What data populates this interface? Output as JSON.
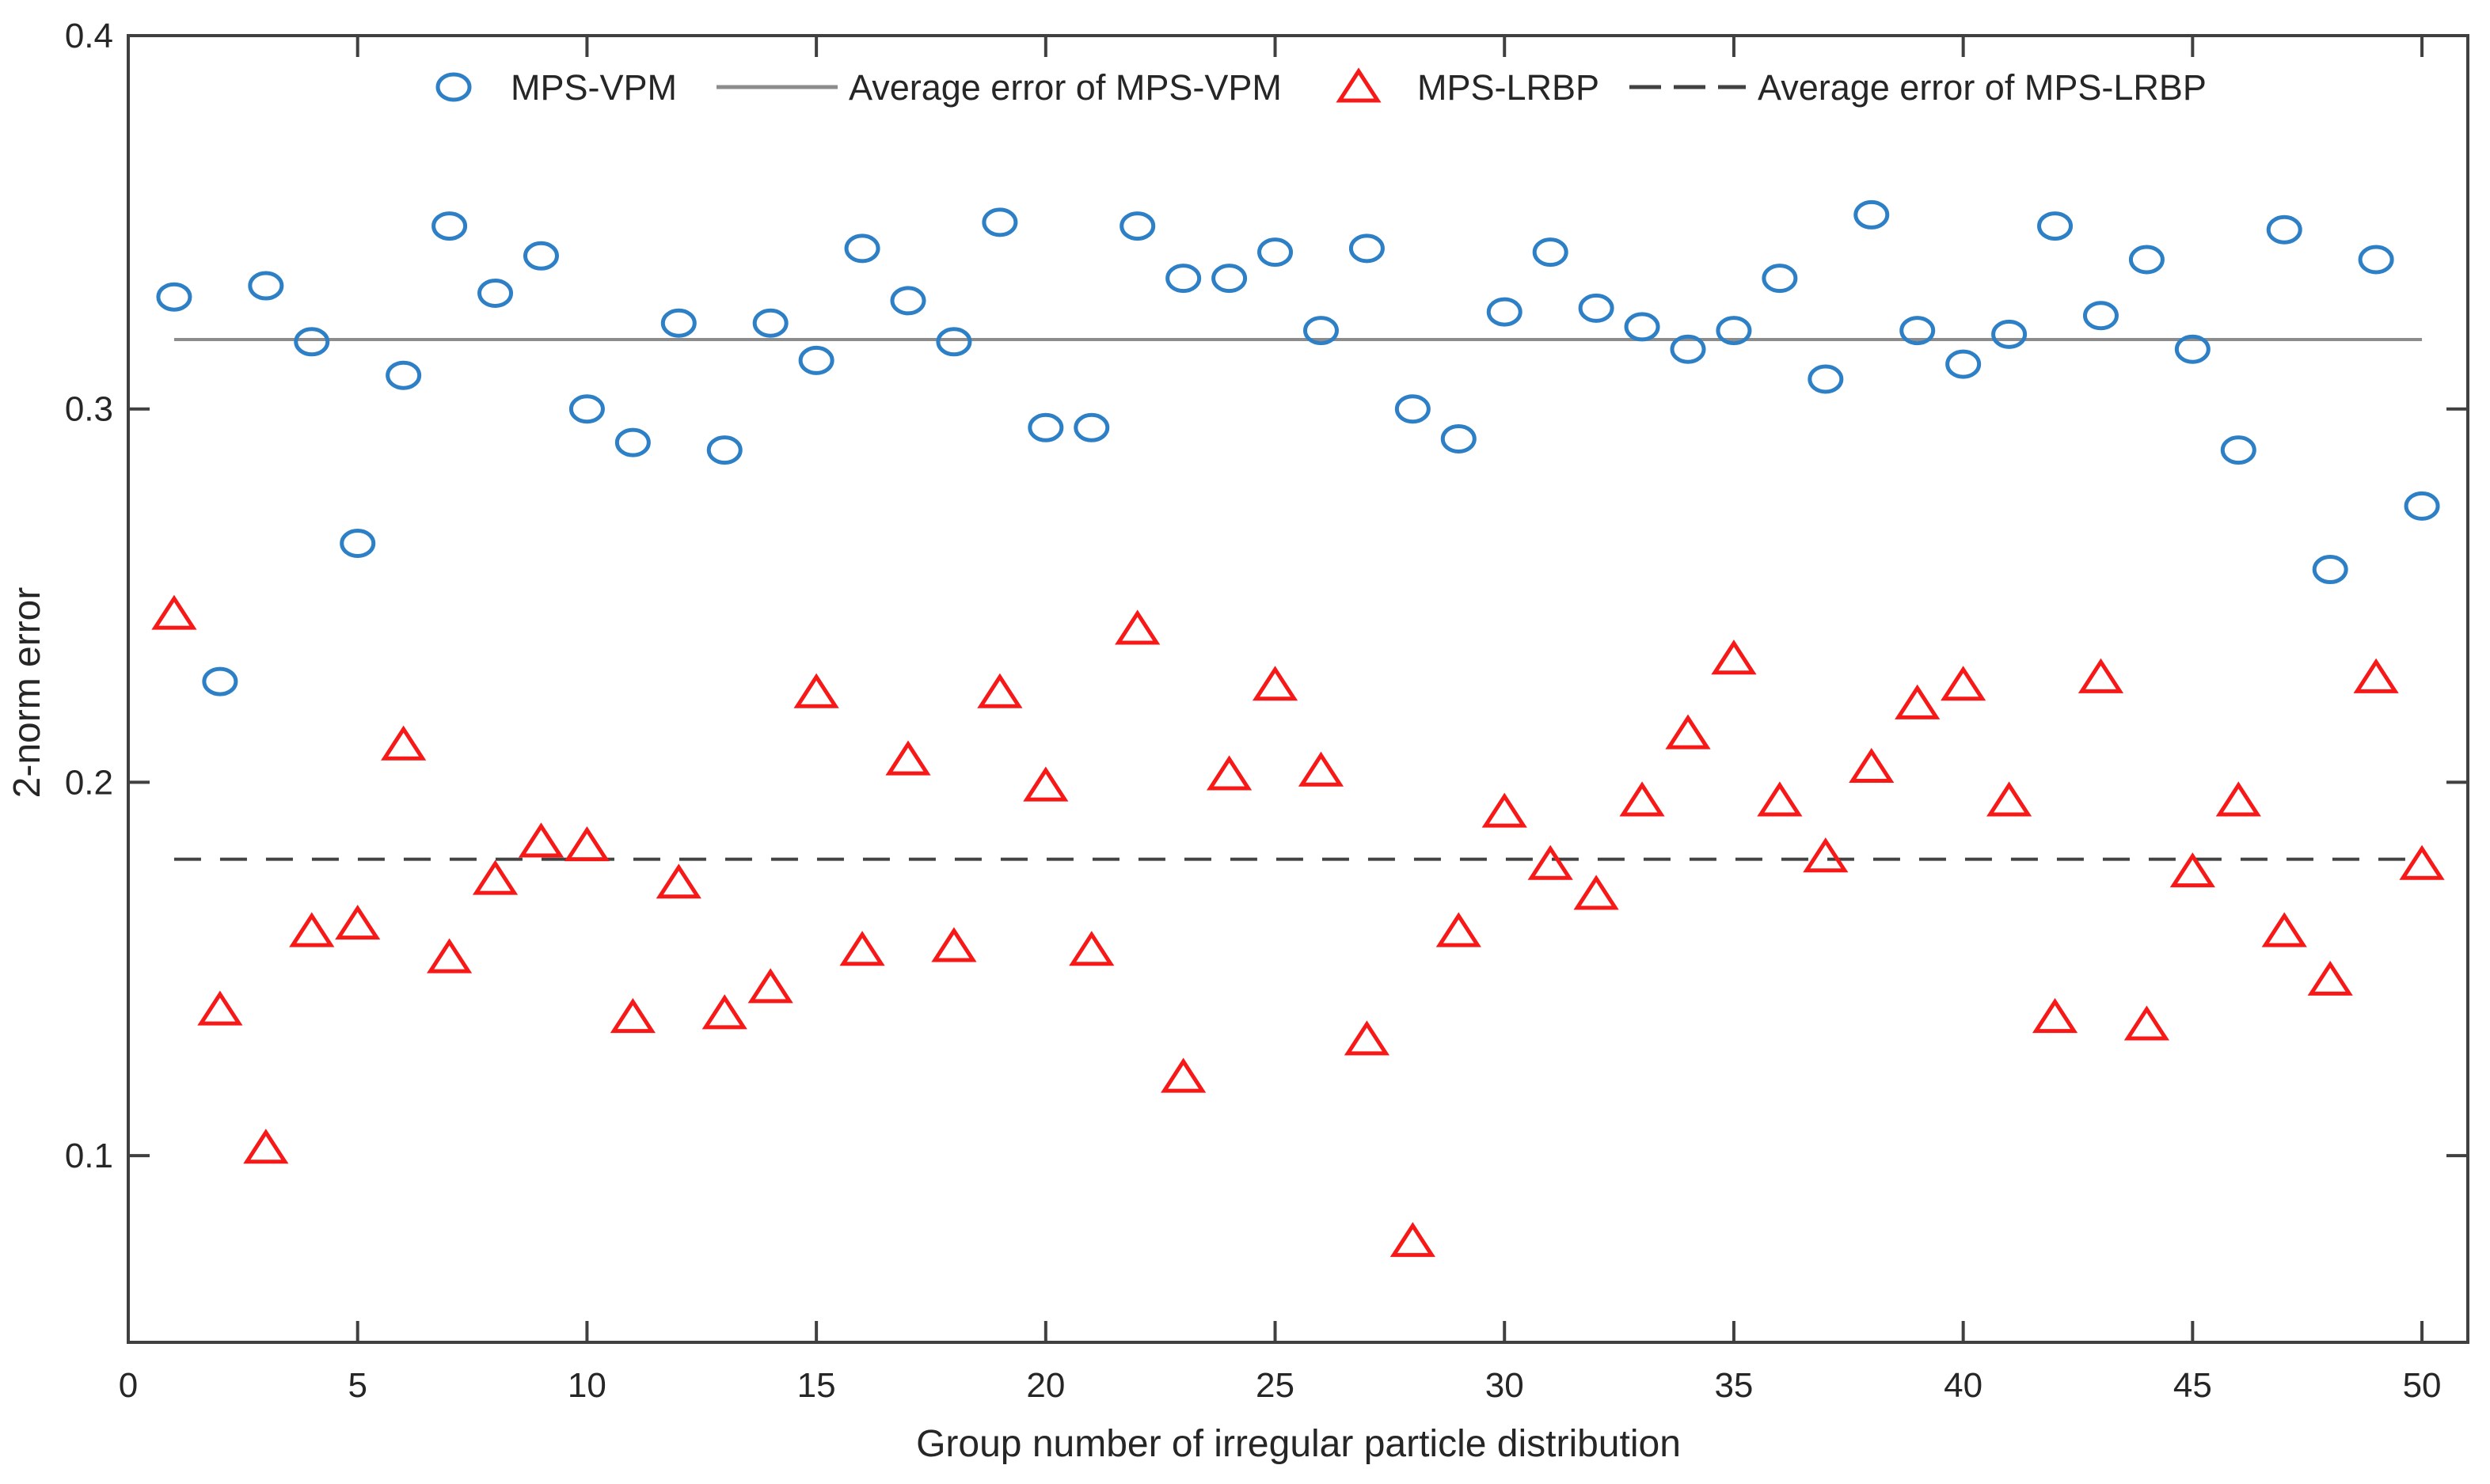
{
  "figure": {
    "background": "#ffffff"
  },
  "chart_data": {
    "type": "scatter",
    "title": "",
    "xlabel": "Group number of irregular particle distribution",
    "ylabel": "2-norm error",
    "xlim": [
      0,
      51
    ],
    "ylim": [
      0.05,
      0.4
    ],
    "grid": false,
    "legend_position": "north-inside",
    "axis_color": "#404040",
    "text_color": "#262626",
    "xticks": [
      "0",
      "5",
      "10",
      "15",
      "20",
      "25",
      "30",
      "35",
      "40",
      "45",
      "50"
    ],
    "yticks": [
      "0.1",
      "0.2",
      "0.3",
      "0.4"
    ],
    "x": [
      1,
      2,
      3,
      4,
      5,
      6,
      7,
      8,
      9,
      10,
      11,
      12,
      13,
      14,
      15,
      16,
      17,
      18,
      19,
      20,
      21,
      22,
      23,
      24,
      25,
      26,
      27,
      28,
      29,
      30,
      31,
      32,
      33,
      34,
      35,
      36,
      37,
      38,
      39,
      40,
      41,
      42,
      43,
      44,
      45,
      46,
      47,
      48,
      49,
      50
    ],
    "series": [
      {
        "name": "MPS-VPM",
        "marker": "circle",
        "color": "#2e80c6",
        "values": [
          0.33,
          0.227,
          0.333,
          0.318,
          0.264,
          0.309,
          0.349,
          0.331,
          0.341,
          0.3,
          0.291,
          0.323,
          0.289,
          0.323,
          0.313,
          0.343,
          0.329,
          0.318,
          0.35,
          0.295,
          0.295,
          0.349,
          0.335,
          0.335,
          0.342,
          0.321,
          0.343,
          0.3,
          0.292,
          0.326,
          0.342,
          0.327,
          0.322,
          0.316,
          0.321,
          0.335,
          0.308,
          0.352,
          0.321,
          0.312,
          0.32,
          0.349,
          0.325,
          0.34,
          0.316,
          0.289,
          0.348,
          0.257,
          0.34,
          0.274
        ]
      },
      {
        "name": "MPS-LRBP",
        "marker": "triangle",
        "color": "#f71818",
        "values": [
          0.245,
          0.139,
          0.102,
          0.16,
          0.162,
          0.21,
          0.153,
          0.174,
          0.184,
          0.183,
          0.137,
          0.173,
          0.138,
          0.145,
          0.224,
          0.155,
          0.206,
          0.156,
          0.224,
          0.199,
          0.155,
          0.241,
          0.121,
          0.202,
          0.226,
          0.203,
          0.131,
          0.077,
          0.16,
          0.192,
          0.178,
          0.17,
          0.195,
          0.213,
          0.233,
          0.195,
          0.18,
          0.204,
          0.221,
          0.226,
          0.195,
          0.137,
          0.228,
          0.135,
          0.176,
          0.195,
          0.16,
          0.147,
          0.228,
          0.178
        ]
      }
    ],
    "average_lines": [
      {
        "name": "Average error of  MPS-VPM",
        "style": "solid",
        "color": "#8c8c8c",
        "value": 0.3186
      },
      {
        "name": "Average error of MPS-LRBP",
        "style": "dashed",
        "color": "#424242",
        "value": 0.1794
      }
    ]
  }
}
